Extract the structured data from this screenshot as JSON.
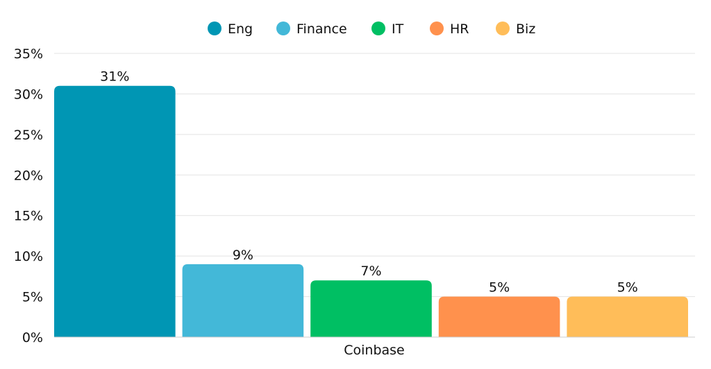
{
  "chart_data": {
    "type": "bar",
    "categories": [
      "Coinbase"
    ],
    "series": [
      {
        "name": "Eng",
        "values": [
          31
        ],
        "color": "#0096B4",
        "label": "31%"
      },
      {
        "name": "Finance",
        "values": [
          9
        ],
        "color": "#43B8D8",
        "label": "9%"
      },
      {
        "name": "IT",
        "values": [
          7
        ],
        "color": "#00BF63",
        "label": "7%"
      },
      {
        "name": "HR",
        "values": [
          5
        ],
        "color": "#FF914D",
        "label": "5%"
      },
      {
        "name": "Biz",
        "values": [
          5
        ],
        "color": "#FFBD59",
        "label": "5%"
      }
    ],
    "title": "",
    "xlabel": "",
    "ylabel": "",
    "ylim": [
      0,
      35
    ],
    "yticks": [
      "0%",
      "5%",
      "10%",
      "15%",
      "20%",
      "25%",
      "30%",
      "35%"
    ],
    "grid": true,
    "legend": "top-center"
  }
}
